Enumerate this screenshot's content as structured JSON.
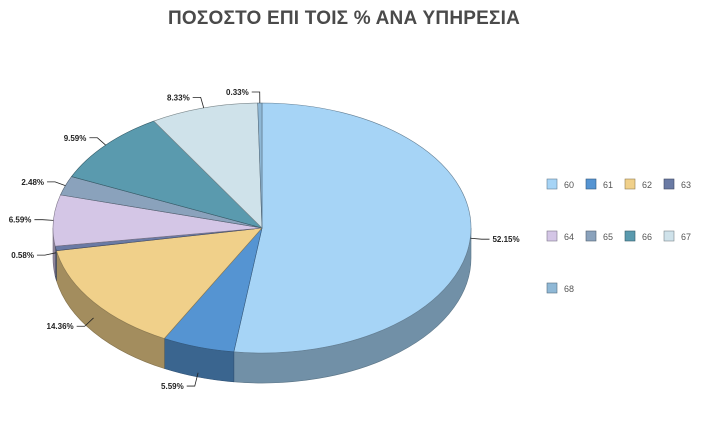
{
  "chart_data": {
    "type": "pie",
    "title": "ΠΟΣΟΣΤΟ ΕΠΙ ΤΟΙΣ % ΑΝΑ ΥΠΗΡΕΣΙΑ",
    "categories": [
      "60",
      "61",
      "62",
      "63",
      "64",
      "65",
      "66",
      "67",
      "68"
    ],
    "values": [
      52.15,
      5.59,
      14.36,
      0.58,
      6.59,
      2.48,
      9.59,
      8.33,
      0.33
    ],
    "labels": [
      "52.15%",
      "5.59%",
      "14.36%",
      "0.58%",
      "6.59%",
      "2.48%",
      "9.59%",
      "8.33%",
      "0.33%"
    ],
    "colors": [
      "#a6d4f6",
      "#5594d2",
      "#f0d08a",
      "#6a7aa4",
      "#d4c6e6",
      "#8aa2bc",
      "#5a9aae",
      "#cfe2ea",
      "#8fb8d6"
    ],
    "legend_position": "right",
    "style": "3d"
  }
}
